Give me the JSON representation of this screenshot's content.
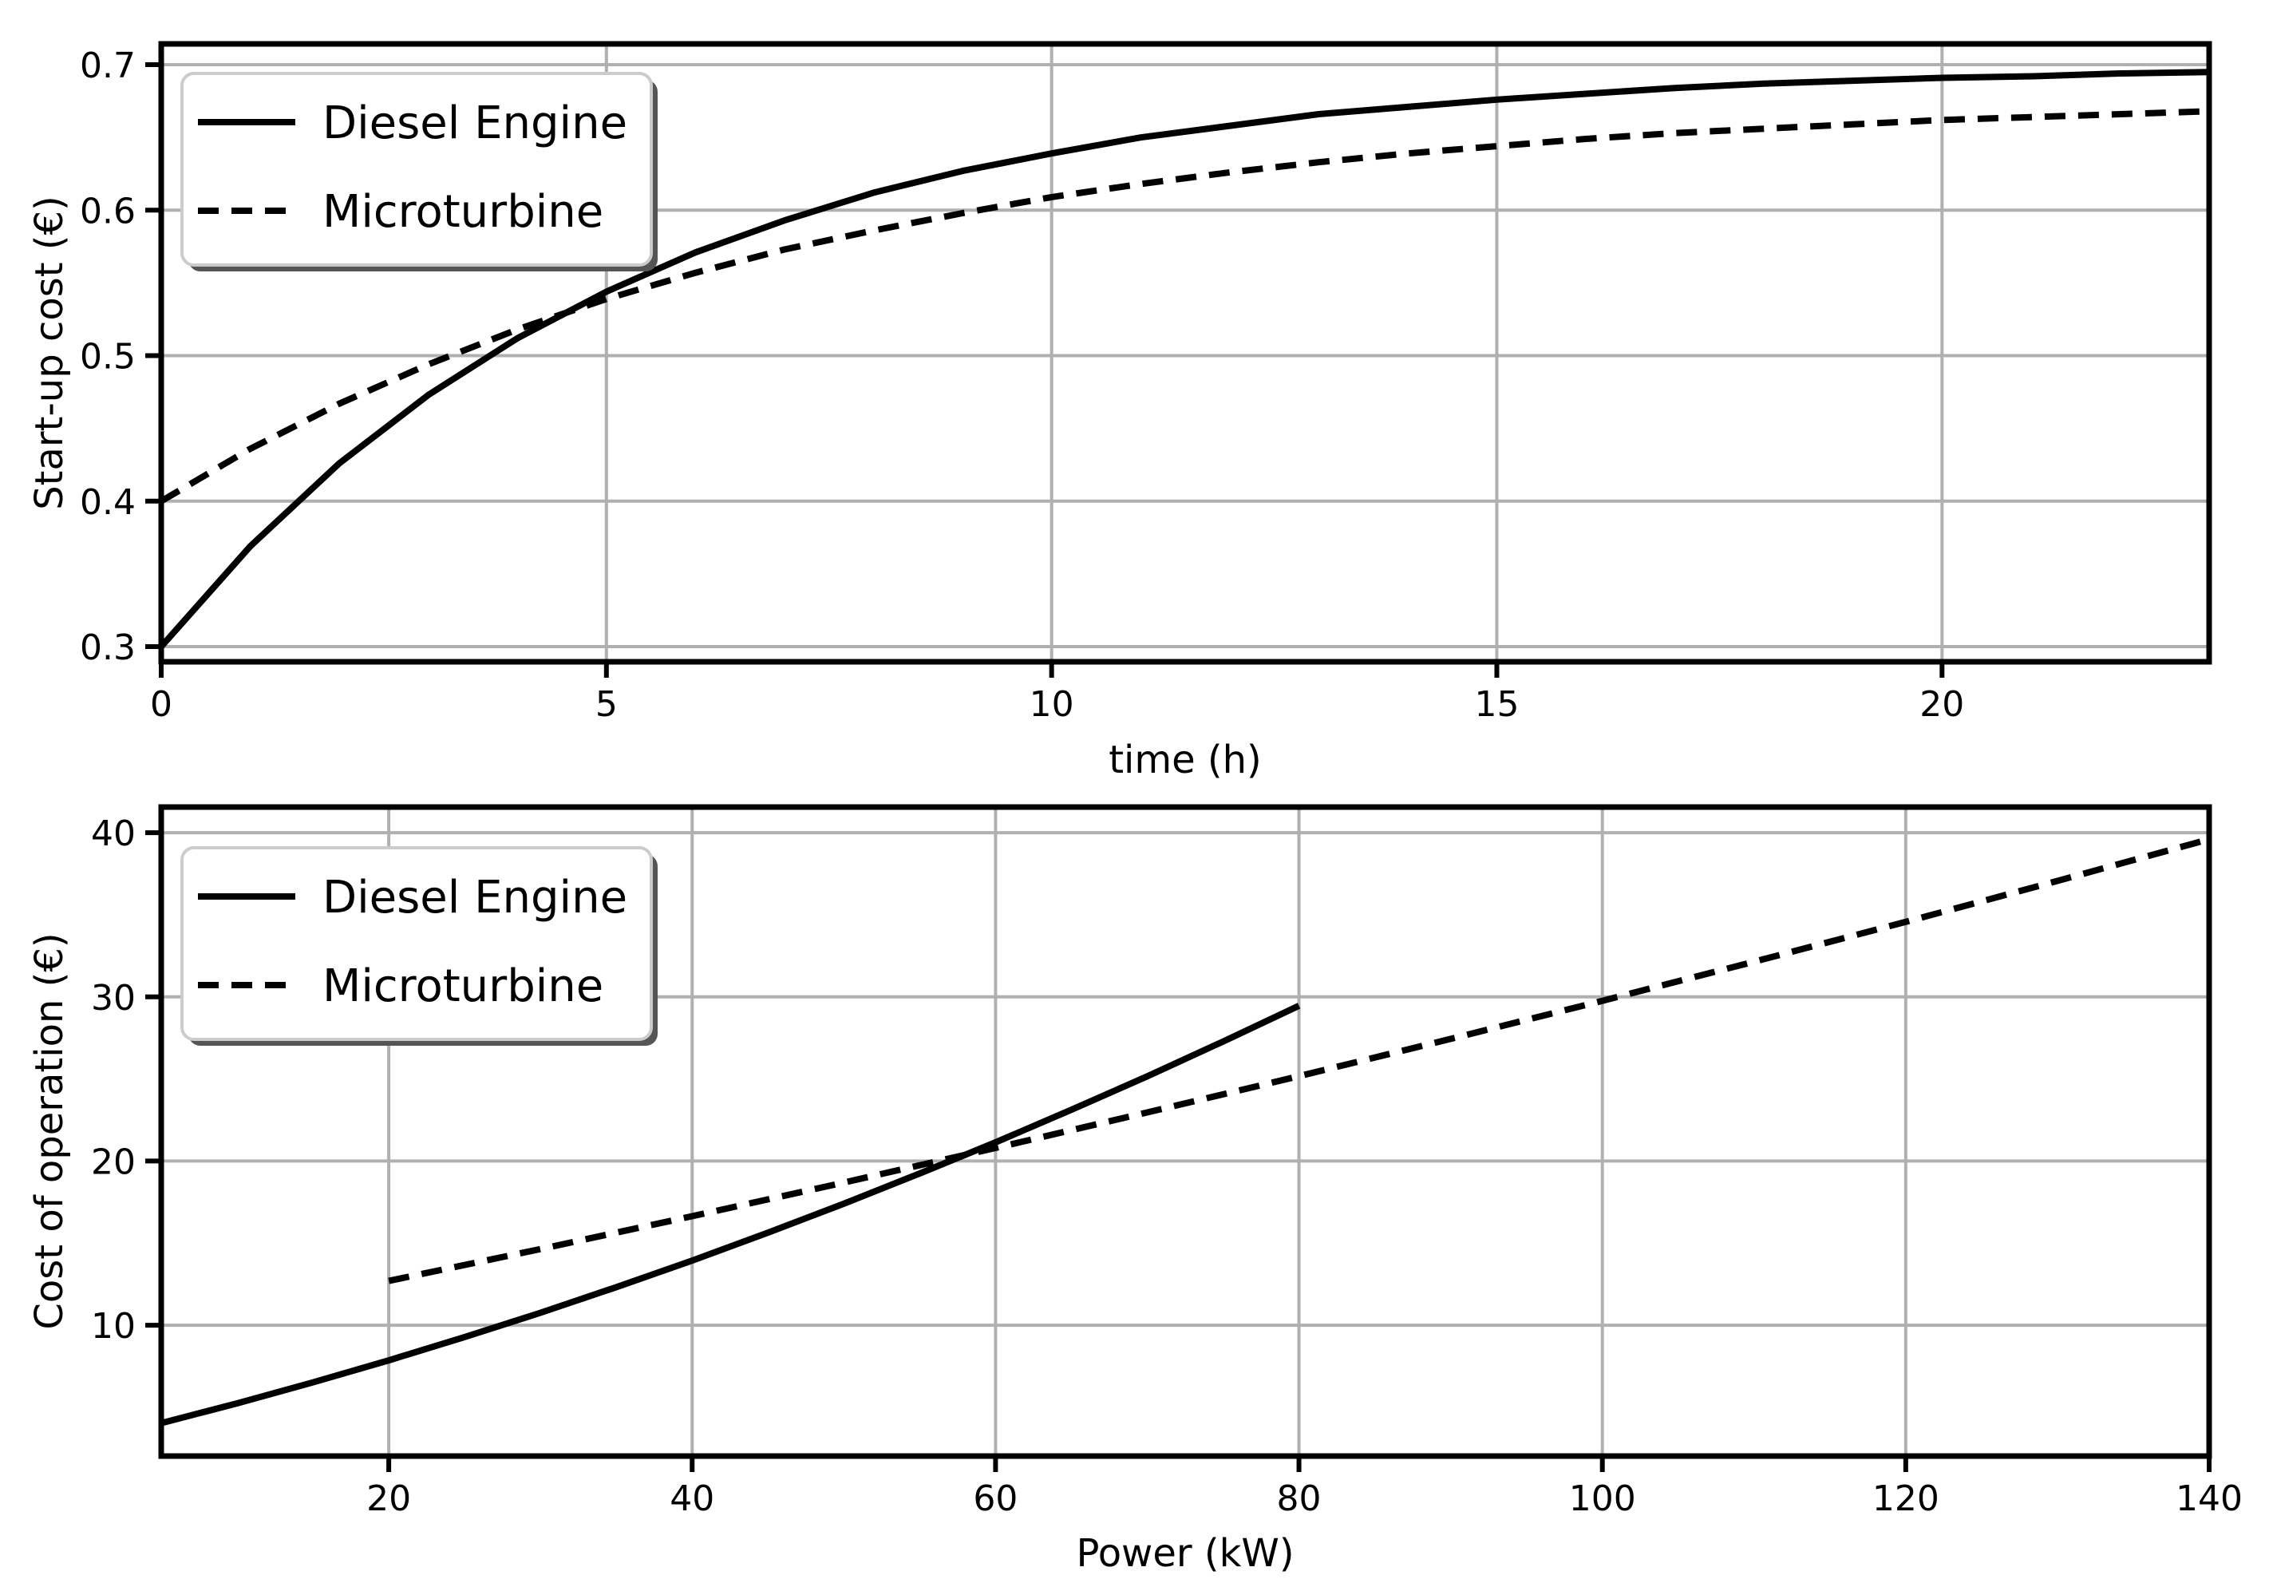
{
  "figure": {
    "background": "#ffffff",
    "line_color": "#000000",
    "grid_color": "#b0b0b0",
    "legend_edge_color": "#cccccc",
    "legend_face_color": "#ffffff",
    "legend_shadow_color": "#555555"
  },
  "chart_data": [
    {
      "type": "line",
      "title": "",
      "xlabel": "time (h)",
      "ylabel": "Start-up cost (€)",
      "xlim": [
        0,
        23
      ],
      "ylim": [
        0.2896,
        0.7143
      ],
      "xticks": [
        0,
        5,
        10,
        15,
        20
      ],
      "xtick_labels": [
        "0",
        "5",
        "10",
        "15",
        "20"
      ],
      "yticks": [
        0.3,
        0.4,
        0.5,
        0.6,
        0.7
      ],
      "ytick_labels": [
        "0.3",
        "0.4",
        "0.5",
        "0.6",
        "0.7"
      ],
      "grid": true,
      "legend": {
        "position": "upper left",
        "entries": [
          {
            "label": "Diesel Engine",
            "style": "solid"
          },
          {
            "label": "Microturbine",
            "style": "dashed"
          }
        ]
      },
      "series": [
        {
          "name": "Diesel Engine",
          "style": "solid",
          "x": [
            0,
            1,
            2,
            3,
            4,
            5,
            6,
            7,
            8,
            9,
            10,
            11,
            12,
            13,
            14,
            15,
            16,
            17,
            18,
            19,
            20,
            21,
            22,
            23
          ],
          "y": [
            0.3,
            0.369,
            0.426,
            0.473,
            0.512,
            0.544,
            0.571,
            0.593,
            0.612,
            0.627,
            0.639,
            0.65,
            0.658,
            0.666,
            0.671,
            0.676,
            0.68,
            0.684,
            0.687,
            0.689,
            0.691,
            0.692,
            0.694,
            0.695
          ]
        },
        {
          "name": "Microturbine",
          "style": "dashed",
          "x": [
            0,
            1,
            2,
            3,
            4,
            5,
            6,
            7,
            8,
            9,
            10,
            11,
            12,
            13,
            14,
            15,
            16,
            17,
            18,
            19,
            20,
            21,
            22,
            23
          ],
          "y": [
            0.4,
            0.436,
            0.467,
            0.494,
            0.518,
            0.539,
            0.557,
            0.573,
            0.586,
            0.598,
            0.609,
            0.618,
            0.626,
            0.633,
            0.639,
            0.644,
            0.649,
            0.653,
            0.656,
            0.659,
            0.662,
            0.664,
            0.666,
            0.668
          ]
        }
      ]
    },
    {
      "type": "line",
      "title": "",
      "xlabel": "Power (kW)",
      "ylabel": "Cost of operation (€)",
      "xlim": [
        5,
        140
      ],
      "ylim": [
        2.03,
        41.56
      ],
      "xticks": [
        20,
        40,
        60,
        80,
        100,
        120,
        140
      ],
      "xtick_labels": [
        "20",
        "40",
        "60",
        "80",
        "100",
        "120",
        "140"
      ],
      "yticks": [
        10,
        20,
        30,
        40
      ],
      "ytick_labels": [
        "10",
        "20",
        "30",
        "40"
      ],
      "grid": true,
      "legend": {
        "position": "upper left",
        "entries": [
          {
            "label": "Diesel Engine",
            "style": "solid"
          },
          {
            "label": "Microturbine",
            "style": "dashed"
          }
        ]
      },
      "series": [
        {
          "name": "Diesel Engine",
          "style": "solid",
          "x": [
            5,
            10,
            15,
            20,
            25,
            30,
            35,
            40,
            45,
            50,
            55,
            60,
            65,
            70,
            75,
            80
          ],
          "y": [
            4.04,
            5.24,
            6.52,
            7.86,
            9.28,
            10.76,
            12.32,
            13.94,
            15.64,
            17.4,
            19.24,
            21.14,
            23.12,
            25.16,
            27.28,
            29.46
          ]
        },
        {
          "name": "Microturbine",
          "style": "dashed",
          "x": [
            20,
            30,
            40,
            50,
            60,
            70,
            80,
            90,
            100,
            110,
            120,
            130,
            140
          ],
          "y": [
            12.7,
            14.64,
            16.64,
            18.69,
            20.8,
            22.96,
            25.17,
            27.44,
            29.76,
            32.14,
            34.57,
            37.06,
            39.6
          ]
        }
      ]
    }
  ]
}
